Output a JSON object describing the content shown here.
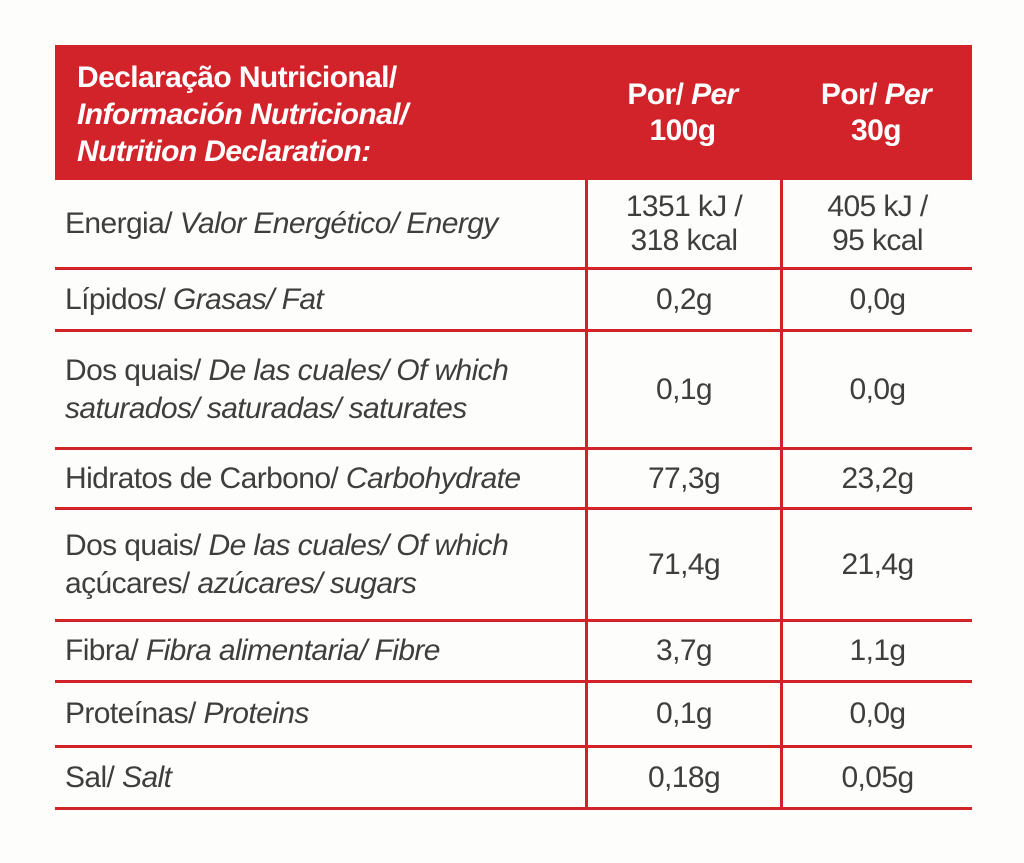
{
  "colors": {
    "accent_red": "#d2232a",
    "text_gray": "#3e3e3d",
    "header_text": "#ffffff"
  },
  "header": {
    "title_line1": "Declaração Nutricional/",
    "title_line2": "Información Nutricional/",
    "title_line3": "Nutrition Declaration:",
    "col_100g": {
      "por": "Por/",
      "per": "Per",
      "amount": "100g"
    },
    "col_30g": {
      "por": "Por/",
      "per": "Per",
      "amount": "30g"
    }
  },
  "rows": [
    {
      "label_pt": "Energia/",
      "label_intl": "Valor Energético/ Energy",
      "per_100g_line1": "1351 kJ /",
      "per_100g_line2": "318 kcal",
      "per_30g_line1": "405 kJ /",
      "per_30g_line2": "95 kcal"
    },
    {
      "label_pt": "Lípidos/",
      "label_intl": "Grasas/ Fat",
      "per_100g": "0,2g",
      "per_30g": "0,0g"
    },
    {
      "label_pt": "Dos quais/",
      "label_intl": "De las cuales/ Of which",
      "label_line2_intl": "saturados/ saturadas/ saturates",
      "per_100g": "0,1g",
      "per_30g": "0,0g"
    },
    {
      "label_pt": "Hidratos de Carbono/",
      "label_intl": "Carbohydrate",
      "per_100g": "77,3g",
      "per_30g": "23,2g"
    },
    {
      "label_pt": "Dos quais/",
      "label_intl": "De las cuales/ Of which",
      "label_line2_pt": "açúcares/",
      "label_line2_intl": "azúcares/ sugars",
      "per_100g": "71,4g",
      "per_30g": "21,4g"
    },
    {
      "label_pt": "Fibra/",
      "label_intl": "Fibra alimentaria/ Fibre",
      "per_100g": "3,7g",
      "per_30g": "1,1g"
    },
    {
      "label_pt": "Proteínas/",
      "label_intl": "Proteins",
      "per_100g": "0,1g",
      "per_30g": "0,0g"
    },
    {
      "label_pt": "Sal/",
      "label_intl": "Salt",
      "per_100g": "0,18g",
      "per_30g": "0,05g"
    }
  ]
}
